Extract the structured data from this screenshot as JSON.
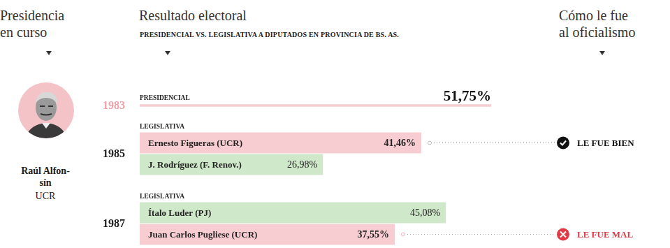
{
  "header": {
    "left": "Presidencia\nen curso",
    "title": "Resultado electoral",
    "subtitle": "PRESIDENCIAL VS. LEGISLATIVA A DIPUTADOS EN PROVINCIA DE BS. AS.",
    "right": "Cómo le fue\nal oficialismo"
  },
  "president": {
    "name": "Raúl Alfon-\nsín",
    "party": "UCR"
  },
  "chart_data": [
    {
      "type": "bar",
      "orientation": "horizontal",
      "title": "1983",
      "subtitle": "PRESIDENCIAL",
      "categories": [
        null
      ],
      "values": [
        51.75
      ],
      "value_labels": [
        "51,75%"
      ],
      "colors": [
        "#f7cdd1"
      ],
      "xlim": [
        0,
        51.75
      ],
      "tick_labels": false,
      "data_labels": true
    },
    {
      "type": "bar",
      "orientation": "horizontal",
      "title": "1985",
      "subtitle": "LEGISLATIVA",
      "categories": [
        "Ernesto Figueras (UCR)",
        "J. Rodríguez (F. Renov.)"
      ],
      "values": [
        41.46,
        26.98
      ],
      "value_labels": [
        "41,46%",
        "26,98%"
      ],
      "colors": [
        "#f7cdd1",
        "#cfe8c9"
      ],
      "xlim": [
        0,
        51.75
      ],
      "tick_labels": false,
      "data_labels": true,
      "annotation": "LE FUE BIEN",
      "marker": "check"
    },
    {
      "type": "bar",
      "orientation": "horizontal",
      "title": "1987",
      "subtitle": "LEGISLATIVA",
      "categories": [
        "Ítalo Luder (PJ)",
        "Juan Carlos Pugliese (UCR)"
      ],
      "values": [
        45.08,
        37.55
      ],
      "value_labels": [
        "45,08%",
        "37,55%"
      ],
      "colors": [
        "#cfe8c9",
        "#f7cdd1"
      ],
      "xlim": [
        0,
        51.75
      ],
      "tick_labels": false,
      "data_labels": true,
      "annotation": "LE FUE MAL",
      "marker": "cross"
    }
  ]
}
